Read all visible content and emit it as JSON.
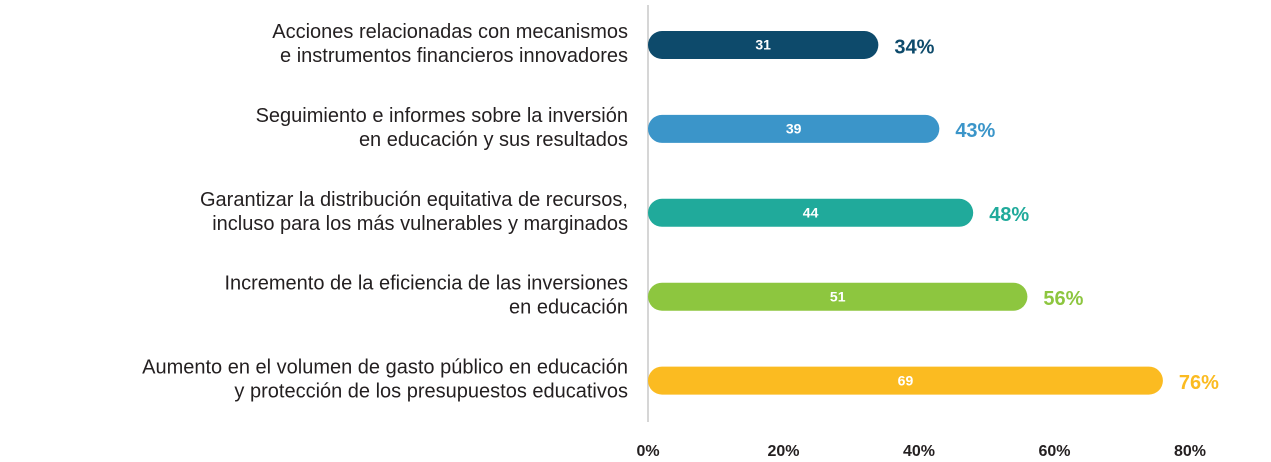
{
  "chart_data": {
    "type": "bar",
    "orientation": "horizontal",
    "categories": [
      [
        "Acciones relacionadas con mecanismos",
        "e instrumentos financieros innovadores"
      ],
      [
        "Seguimiento e informes sobre la inversión",
        "en educación y sus resultados"
      ],
      [
        "Garantizar la distribución equitativa de recursos,",
        "incluso para los más vulnerables y marginados"
      ],
      [
        "Incremento de la eficiencia de las inversiones",
        "en educación"
      ],
      [
        "Aumento en el volumen de gasto público en educación",
        "y protección de los presupuestos educativos"
      ]
    ],
    "values": [
      34,
      43,
      48,
      56,
      76
    ],
    "value_labels": [
      "34%",
      "43%",
      "48%",
      "56%",
      "76%"
    ],
    "counts": [
      31,
      39,
      44,
      51,
      69
    ],
    "colors": [
      "#0d4a6b",
      "#3b95c9",
      "#20aa9b",
      "#8dc63f",
      "#fbbb21"
    ],
    "xlim": [
      0,
      80
    ],
    "xticks": [
      {
        "value": 0,
        "label": "0%"
      },
      {
        "value": 20,
        "label": "20%"
      },
      {
        "value": 40,
        "label": "40%"
      },
      {
        "value": 60,
        "label": "60%"
      },
      {
        "value": 80,
        "label": "80%"
      }
    ]
  }
}
